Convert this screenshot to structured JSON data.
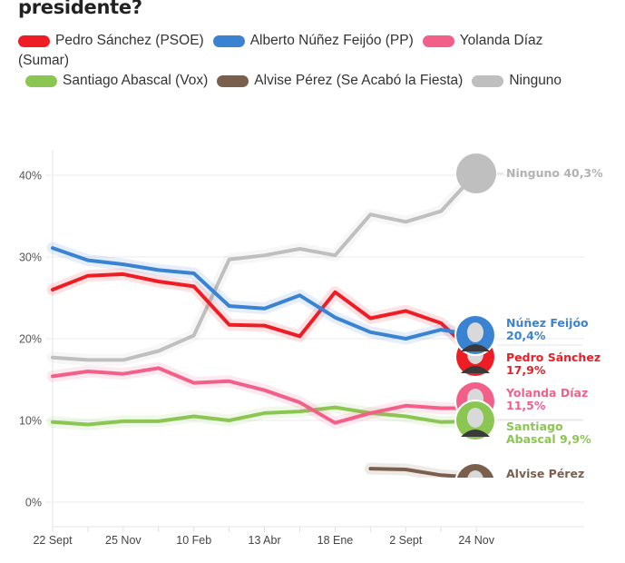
{
  "title": "presidente?",
  "legend": [
    {
      "label": "Pedro Sánchez (PSOE)",
      "color": "#ee1c25"
    },
    {
      "label": "Alberto Núñez Feijóo (PP)",
      "color": "#3a83d2"
    },
    {
      "label": "Yolanda Díaz",
      "label_cont": "(Sumar)",
      "color": "#f2608a"
    },
    {
      "label": "Santiago Abascal (Vox)",
      "color": "#8cc652"
    },
    {
      "label": "Alvise Pérez (Se Acabó la Fiesta)",
      "color": "#7a5f4c"
    },
    {
      "label": "Ninguno",
      "color": "#bfbfbf"
    }
  ],
  "chart_data": {
    "type": "line",
    "title": "presidente?",
    "xlabel": "",
    "ylabel": "",
    "ylim": [
      0,
      40
    ],
    "y_ticks": [
      "0%",
      "10%",
      "20%",
      "30%",
      "40%"
    ],
    "x_tick_labels": [
      "22 Sept",
      "25 Nov",
      "10 Feb",
      "13 Abr",
      "18 Ene",
      "2 Sept",
      "24 Nov"
    ],
    "x_count": 13,
    "grid": true,
    "series": [
      {
        "name": "Ninguno",
        "color": "#bfbfbf",
        "values": [
          17.7,
          17.4,
          17.4,
          18.5,
          20.4,
          29.7,
          30.2,
          31.0,
          30.2,
          35.2,
          34.3,
          35.6,
          40.3
        ],
        "end_label": [
          "Ninguno 40,3%"
        ]
      },
      {
        "name": "Alberto Núñez Feijóo (PP)",
        "color": "#3a83d2",
        "values": [
          31.1,
          29.6,
          29.1,
          28.4,
          28.0,
          24.0,
          23.7,
          25.3,
          22.6,
          20.8,
          20.0,
          21.1,
          20.4
        ],
        "end_label": [
          "Núñez Feijóo",
          "20,4%"
        ]
      },
      {
        "name": "Pedro Sánchez (PSOE)",
        "color": "#ee1c25",
        "values": [
          26.0,
          27.7,
          27.9,
          27.0,
          26.4,
          21.7,
          21.6,
          20.3,
          25.7,
          22.5,
          23.4,
          21.9,
          17.9
        ],
        "end_label": [
          "Pedro Sánchez",
          "17,9%"
        ]
      },
      {
        "name": "Yolanda Díaz (Sumar)",
        "color": "#f2608a",
        "values": [
          15.4,
          16.0,
          15.7,
          16.4,
          14.6,
          14.8,
          13.7,
          12.2,
          9.7,
          10.9,
          11.8,
          11.5,
          11.5
        ],
        "end_label": [
          "Yolanda Díaz",
          "11,5%"
        ]
      },
      {
        "name": "Santiago Abascal (Vox)",
        "color": "#8cc652",
        "values": [
          9.8,
          9.5,
          9.9,
          9.9,
          10.5,
          10.0,
          10.9,
          11.1,
          11.6,
          10.9,
          10.5,
          9.8,
          9.9
        ],
        "end_label": [
          "Santiago",
          "Abascal 9,9%"
        ]
      },
      {
        "name": "Alvise Pérez (Se Acabó la Fiesta)",
        "color": "#7a5f4c",
        "values": [
          null,
          null,
          null,
          null,
          null,
          null,
          null,
          null,
          null,
          4.1,
          4.0,
          3.3,
          3.0
        ],
        "end_label": [
          "Alvise Pérez"
        ]
      }
    ]
  }
}
